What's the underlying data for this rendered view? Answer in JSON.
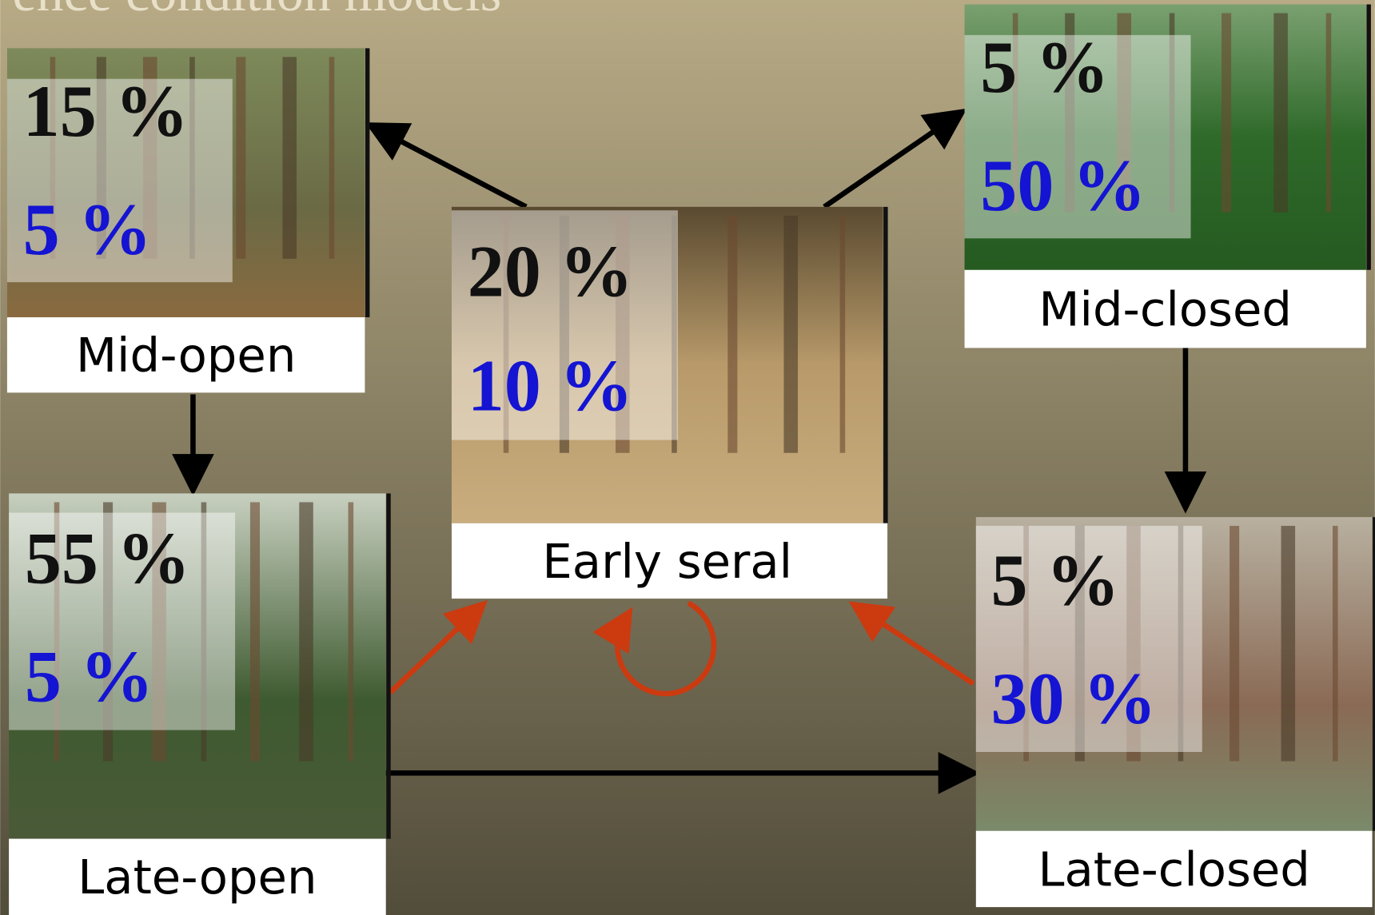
{
  "title": "ence condition models",
  "nodes": [
    {
      "label": "Mid-open",
      "reference": "15 %",
      "current": "5 %"
    },
    {
      "label": "Mid-closed",
      "reference": "5 %",
      "current": "50 %"
    },
    {
      "label": "Early seral",
      "reference": "20 %",
      "current": "10 %"
    },
    {
      "label": "Late-open",
      "reference": "55 %",
      "current": "5 %"
    },
    {
      "label": "Late-closed",
      "reference": "5 %",
      "current": "30 %"
    }
  ]
}
